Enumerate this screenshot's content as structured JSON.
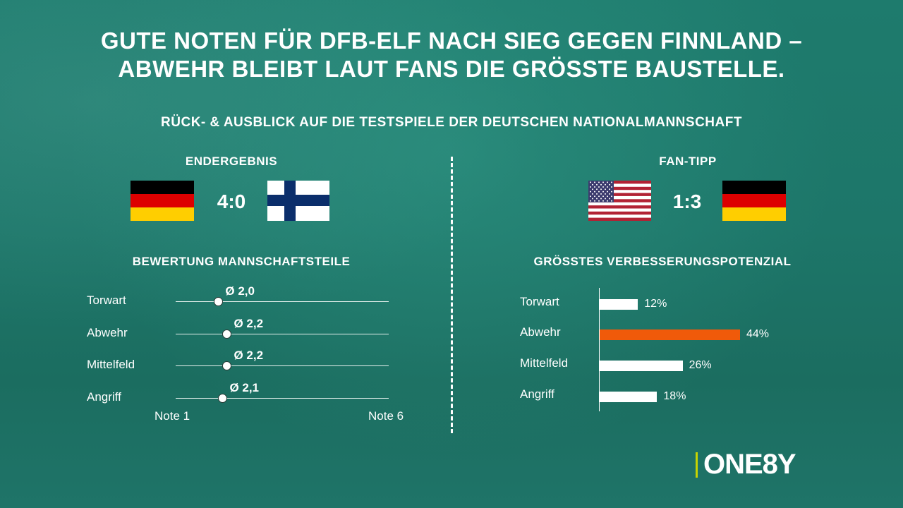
{
  "title_line1": "GUTE NOTEN FÜR DFB-ELF NACH SIEG GEGEN FINNLAND –",
  "title_line2": "ABWEHR BLEIBT LAUT FANS DIE GRÖSSTE BAUSTELLE.",
  "subtitle": "RÜCK- & AUSBLICK AUF DIE TESTSPIELE DER DEUTSCHEN NATIONALMANNSCHAFT",
  "result": {
    "header": "ENDERGEBNIS",
    "score": "4:0",
    "home_flag": "germany-flag",
    "away_flag": "finland-flag"
  },
  "tip": {
    "header": "FAN-TIPP",
    "score": "1:3",
    "home_flag": "usa-flag",
    "away_flag": "germany-flag"
  },
  "logo": "ONE8Y",
  "colors": {
    "highlight": "#f05a0a",
    "logo_accent": "#c8d400",
    "background": "#1d7669"
  },
  "chart_data": [
    {
      "type": "scatter",
      "title": "BEWERTUNG MANNSCHAFTSTEILE",
      "categories": [
        "Torwart",
        "Abwehr",
        "Mittelfeld",
        "Angriff"
      ],
      "values": [
        2.0,
        2.2,
        2.2,
        2.1
      ],
      "value_labels": [
        "Ø 2,0",
        "Ø 2,2",
        "Ø 2,2",
        "Ø 2,1"
      ],
      "xlim": [
        1,
        6
      ],
      "x_min_label": "Note 1",
      "x_max_label": "Note 6"
    },
    {
      "type": "bar",
      "orientation": "horizontal",
      "title": "GRÖSSTES VERBESSERUNGSPOTENZIAL",
      "categories": [
        "Torwart",
        "Abwehr",
        "Mittelfeld",
        "Angriff"
      ],
      "values": [
        12,
        44,
        26,
        18
      ],
      "value_labels": [
        "12%",
        "44%",
        "26%",
        "18%"
      ],
      "highlight_index": 1,
      "xlim": [
        0,
        50
      ]
    }
  ]
}
